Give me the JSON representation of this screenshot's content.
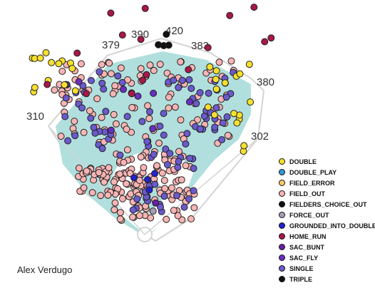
{
  "chart_data": {
    "type": "scatter",
    "player": "Alex Verdugo",
    "distances": [
      "379",
      "390",
      "420",
      "383",
      "380",
      "310",
      "302"
    ],
    "series": [
      {
        "name": "DOUBLE",
        "color": "#f7e02b",
        "count": 31
      },
      {
        "name": "DOUBLE_PLAY",
        "color": "#2f9bd6",
        "count": 0
      },
      {
        "name": "FIELD_ERROR",
        "color": "#f9c96a",
        "count": 0
      },
      {
        "name": "FIELD_OUT",
        "color": "#f8b4b3",
        "count": 260
      },
      {
        "name": "FIELDERS_CHOICE_OUT",
        "color": "#111111",
        "count": 3
      },
      {
        "name": "FORCE_OUT",
        "color": "#a79bb5",
        "count": 1
      },
      {
        "name": "GROUNDED_INTO_DOUBLE_PLAY",
        "color": "#2222cc",
        "count": 4
      },
      {
        "name": "HOME_RUN",
        "color": "#a8174a",
        "count": 16
      },
      {
        "name": "SAC_BUNT",
        "color": "#6a1f9e",
        "count": 1
      },
      {
        "name": "SAC_FLY",
        "color": "#6a2fbf",
        "count": 7
      },
      {
        "name": "SINGLE",
        "color": "#6a5acd",
        "count": 96
      },
      {
        "name": "TRIPLE",
        "color": "#111111",
        "count": 1
      }
    ]
  }
}
